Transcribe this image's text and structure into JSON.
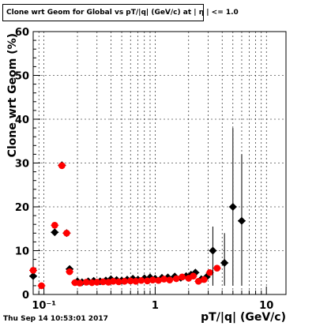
{
  "chart_data": {
    "type": "scatter",
    "title": "Clone wrt Geom for Global vs pT/|q| (GeV/c) at |  η | <= 1.0",
    "xlabel": "pT/|q| (GeV/c)",
    "ylabel": "Clone wrt Geom (%)",
    "x_scale": "log",
    "xlim": [
      0.08,
      15
    ],
    "ylim": [
      0,
      60
    ],
    "y_ticks": [
      "0",
      "10",
      "20",
      "30",
      "40",
      "50",
      "60"
    ],
    "x_tick_labels": [
      "10⁻¹",
      "1",
      "10"
    ],
    "grid": true,
    "series": [
      {
        "color": "#000000",
        "marker": "diamond",
        "points": [
          {
            "x": 0.08,
            "y": 4.2
          },
          {
            "x": 0.125,
            "y": 14.2
          },
          {
            "x": 0.145,
            "y": 29.5
          },
          {
            "x": 0.16,
            "y": 14.0
          },
          {
            "x": 0.17,
            "y": 5.8
          },
          {
            "x": 0.2,
            "y": 3.0
          },
          {
            "x": 0.22,
            "y": 2.8
          },
          {
            "x": 0.25,
            "y": 3.0
          },
          {
            "x": 0.28,
            "y": 3.1
          },
          {
            "x": 0.32,
            "y": 3.0
          },
          {
            "x": 0.36,
            "y": 3.2
          },
          {
            "x": 0.4,
            "y": 3.5
          },
          {
            "x": 0.45,
            "y": 3.3
          },
          {
            "x": 0.5,
            "y": 3.2
          },
          {
            "x": 0.56,
            "y": 3.4
          },
          {
            "x": 0.63,
            "y": 3.6
          },
          {
            "x": 0.7,
            "y": 3.4
          },
          {
            "x": 0.8,
            "y": 3.7
          },
          {
            "x": 0.9,
            "y": 3.9
          },
          {
            "x": 1.0,
            "y": 3.6
          },
          {
            "x": 1.15,
            "y": 3.8
          },
          {
            "x": 1.3,
            "y": 3.9
          },
          {
            "x": 1.5,
            "y": 4.1
          },
          {
            "x": 1.7,
            "y": 3.8
          },
          {
            "x": 1.9,
            "y": 4.2
          },
          {
            "x": 2.1,
            "y": 4.5
          },
          {
            "x": 2.3,
            "y": 5.0
          },
          {
            "x": 2.6,
            "y": 3.5
          },
          {
            "x": 2.9,
            "y": 4.0
          },
          {
            "x": 3.3,
            "y": 10.0
          },
          {
            "x": 4.2,
            "y": 7.2
          },
          {
            "x": 5.0,
            "y": 20.0
          },
          {
            "x": 6.0,
            "y": 16.8
          }
        ]
      },
      {
        "color": "#ff0000",
        "marker": "circle",
        "points": [
          {
            "x": 0.08,
            "y": 5.5
          },
          {
            "x": 0.095,
            "y": 2.0
          },
          {
            "x": 0.125,
            "y": 15.8
          },
          {
            "x": 0.145,
            "y": 29.4
          },
          {
            "x": 0.16,
            "y": 14.0
          },
          {
            "x": 0.17,
            "y": 5.2
          },
          {
            "x": 0.19,
            "y": 2.7
          },
          {
            "x": 0.21,
            "y": 2.6
          },
          {
            "x": 0.24,
            "y": 2.8
          },
          {
            "x": 0.27,
            "y": 2.7
          },
          {
            "x": 0.3,
            "y": 2.8
          },
          {
            "x": 0.34,
            "y": 2.9
          },
          {
            "x": 0.38,
            "y": 2.8
          },
          {
            "x": 0.42,
            "y": 3.0
          },
          {
            "x": 0.47,
            "y": 2.9
          },
          {
            "x": 0.53,
            "y": 3.0
          },
          {
            "x": 0.6,
            "y": 3.1
          },
          {
            "x": 0.67,
            "y": 3.0
          },
          {
            "x": 0.75,
            "y": 3.2
          },
          {
            "x": 0.85,
            "y": 3.1
          },
          {
            "x": 0.95,
            "y": 3.3
          },
          {
            "x": 1.07,
            "y": 3.2
          },
          {
            "x": 1.2,
            "y": 3.5
          },
          {
            "x": 1.35,
            "y": 3.3
          },
          {
            "x": 1.55,
            "y": 3.6
          },
          {
            "x": 1.75,
            "y": 4.0
          },
          {
            "x": 2.0,
            "y": 3.7
          },
          {
            "x": 2.2,
            "y": 4.2
          },
          {
            "x": 2.45,
            "y": 3.0
          },
          {
            "x": 2.75,
            "y": 3.4
          },
          {
            "x": 3.1,
            "y": 5.0
          },
          {
            "x": 3.6,
            "y": 6.0
          }
        ]
      }
    ]
  },
  "footer": {
    "date": "Thu Sep 14 10:53:01 2017"
  }
}
